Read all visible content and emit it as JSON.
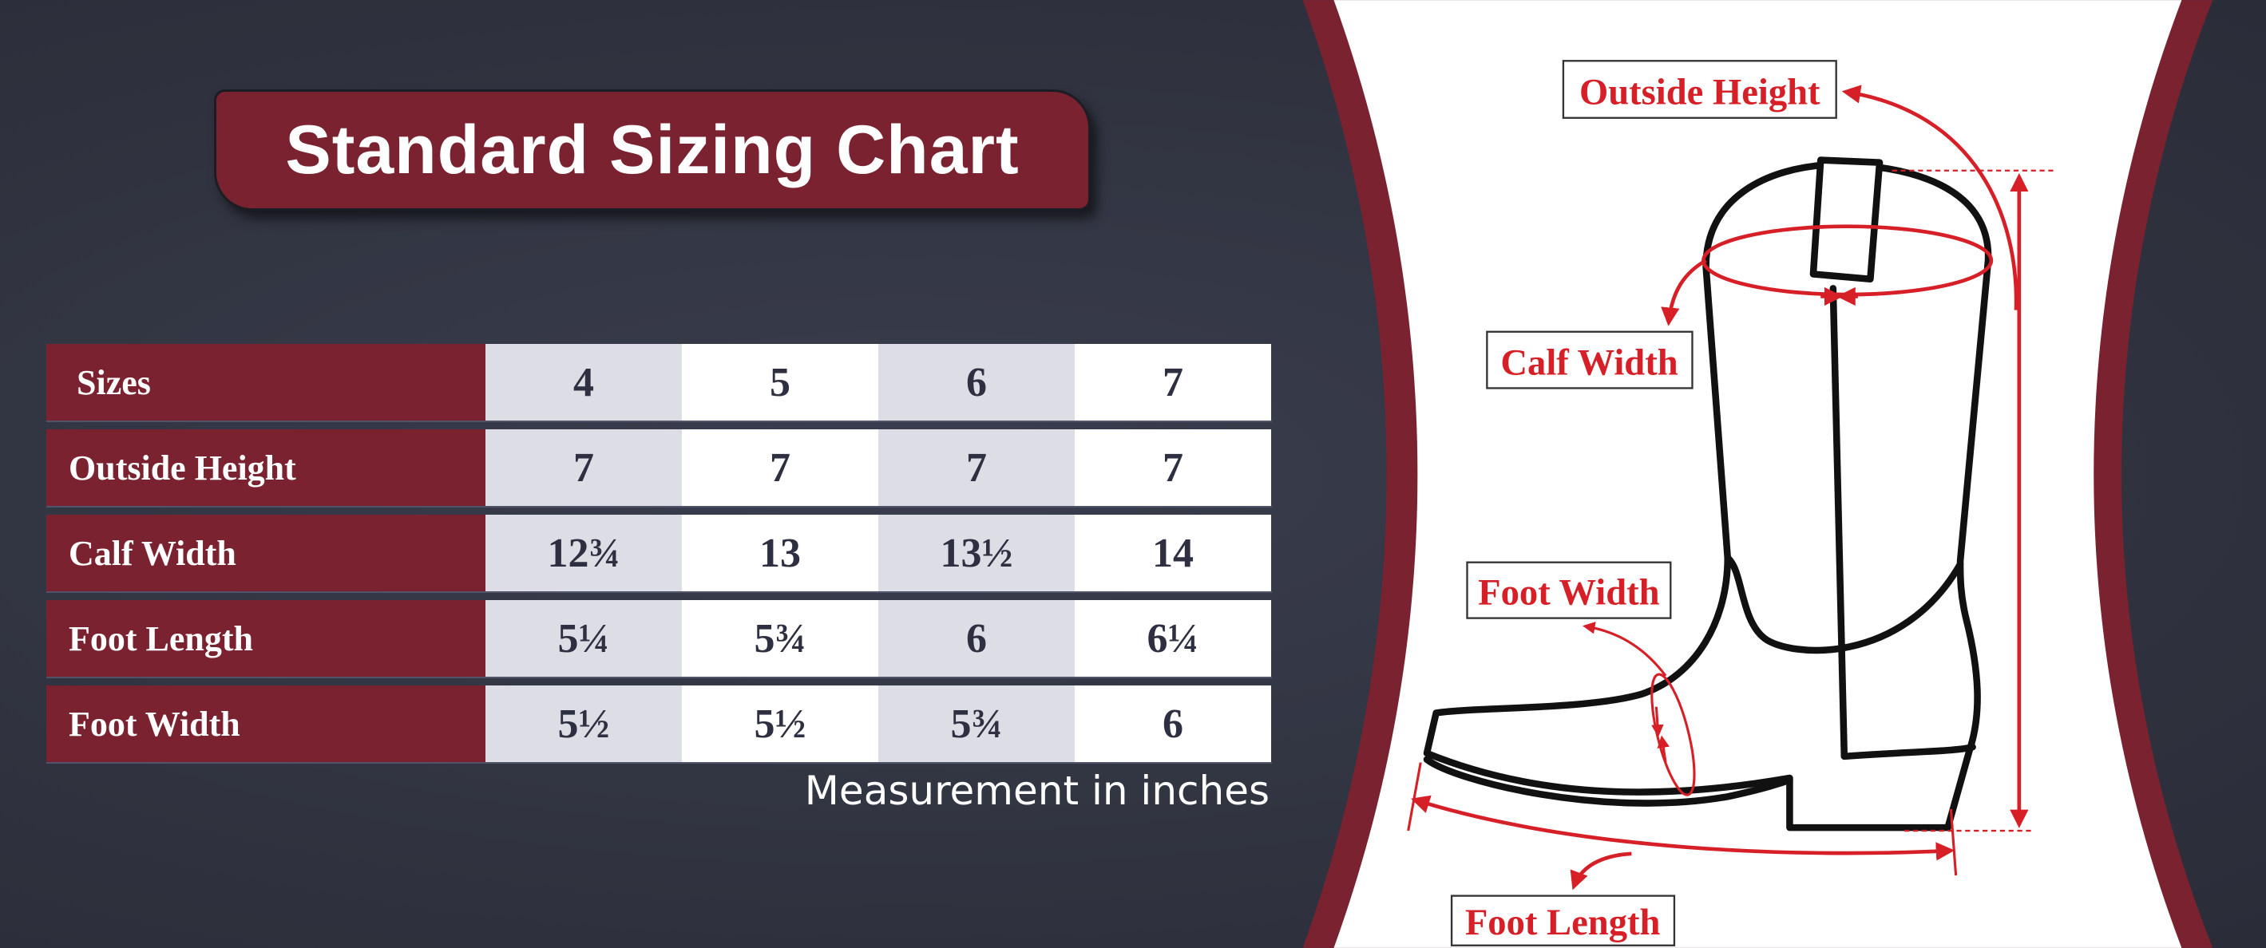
{
  "title": "Standard Sizing Chart",
  "table": {
    "header": {
      "label": "Sizes",
      "values": [
        "4",
        "5",
        "6",
        "7"
      ]
    },
    "rows": [
      {
        "label": "Outside Height",
        "values": [
          "7",
          "7",
          "7",
          "7"
        ]
      },
      {
        "label": "Calf Width",
        "values": [
          "12¾",
          "13",
          "13½",
          "14"
        ]
      },
      {
        "label": "Foot Length",
        "values": [
          "5¼",
          "5¾",
          "6",
          "6¼"
        ]
      },
      {
        "label": "Foot Width",
        "values": [
          "5½",
          "5½",
          "5¾",
          "6"
        ]
      }
    ]
  },
  "caption": "Measurement in inches",
  "diagram": {
    "labels": {
      "outside_height": "Outside Height",
      "calf_width": "Calf Width",
      "foot_width": "Foot Width",
      "foot_length": "Foot Length"
    }
  },
  "colors": {
    "maroon": "#7b2230",
    "background": "#30333f",
    "accent_red": "#d61f26",
    "alt_column": "#dcdde5"
  }
}
